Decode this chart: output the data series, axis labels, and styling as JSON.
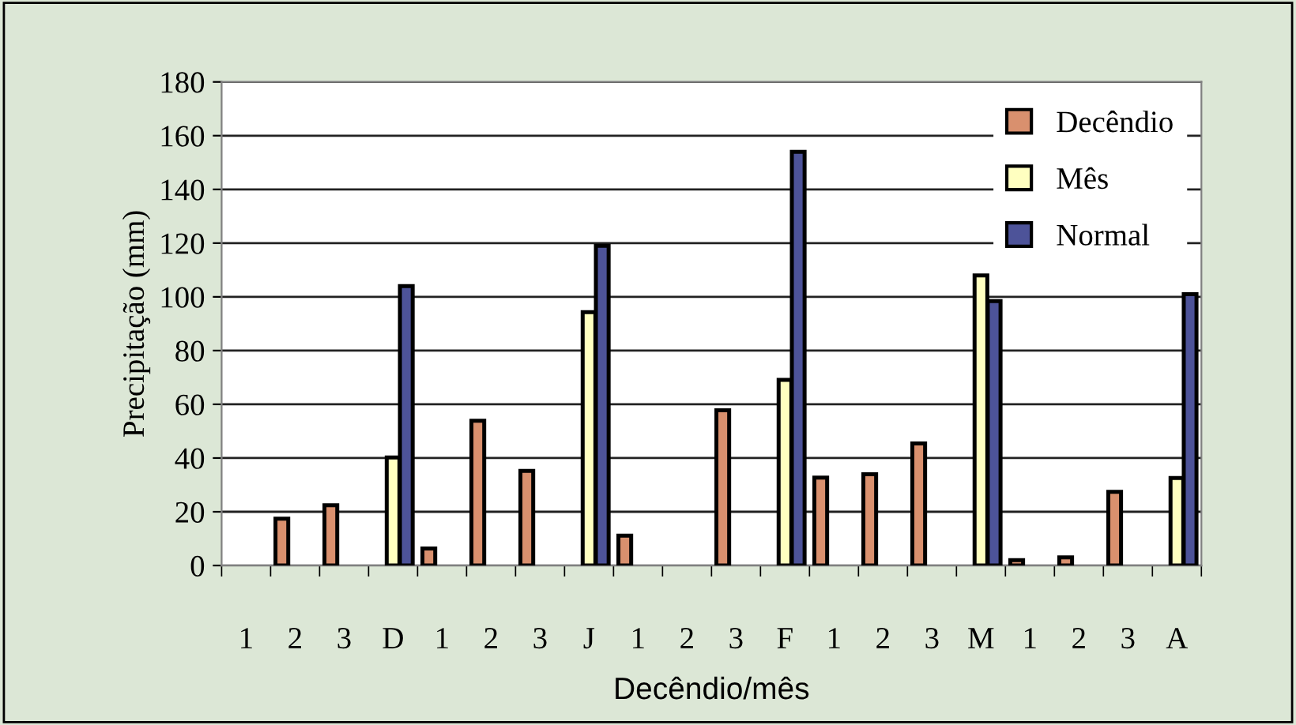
{
  "chart_data": {
    "type": "bar",
    "xlabel": "Decêndio/mês",
    "ylabel": "Precipitação (mm)",
    "categories": [
      "1",
      "2",
      "3",
      "D",
      "1",
      "2",
      "3",
      "J",
      "1",
      "2",
      "3",
      "F",
      "1",
      "2",
      "3",
      "M",
      "1",
      "2",
      "3",
      "A"
    ],
    "series": [
      {
        "name": "Decêndio",
        "color": "#d9906e",
        "values": [
          null,
          17.4,
          22.4,
          null,
          6.3,
          53.9,
          35.2,
          null,
          11.1,
          null,
          57.8,
          null,
          32.7,
          34,
          45.4,
          null,
          2,
          3,
          27.4,
          null
        ]
      },
      {
        "name": "Mês",
        "color": "#ffffc0",
        "values": [
          null,
          null,
          null,
          40.2,
          null,
          null,
          null,
          94.3,
          null,
          null,
          null,
          69.1,
          null,
          null,
          null,
          108,
          null,
          null,
          null,
          32.6
        ]
      },
      {
        "name": "Normal",
        "color": "#4d5399",
        "values": [
          null,
          null,
          null,
          104,
          null,
          null,
          null,
          119,
          null,
          null,
          null,
          154,
          null,
          null,
          null,
          98.4,
          null,
          null,
          null,
          101
        ]
      }
    ],
    "ylim": [
      0,
      180
    ],
    "yticks": [
      0,
      20,
      40,
      60,
      80,
      100,
      120,
      140,
      160,
      180
    ],
    "grid": "y",
    "legend": "top right"
  }
}
